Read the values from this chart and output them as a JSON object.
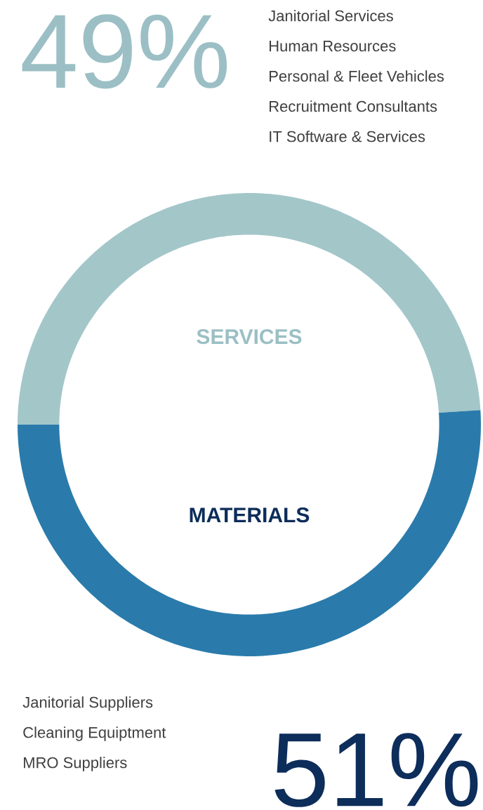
{
  "chart_data": {
    "type": "donut",
    "categories": [
      "SERVICES",
      "MATERIALS"
    ],
    "values": [
      49,
      51
    ],
    "colors": [
      "#a3c6c9",
      "#2a7bab"
    ],
    "value_labels": [
      "49%",
      "51%"
    ],
    "annotations": [
      "Janitorial Services",
      "Human Resources",
      "Personal & Fleet Vehicles",
      "Recruitment Consultants",
      "IT Software & Services",
      "Janitorial Suppliers",
      "Cleaning Equiptment",
      "MRO Suppliers"
    ]
  }
}
